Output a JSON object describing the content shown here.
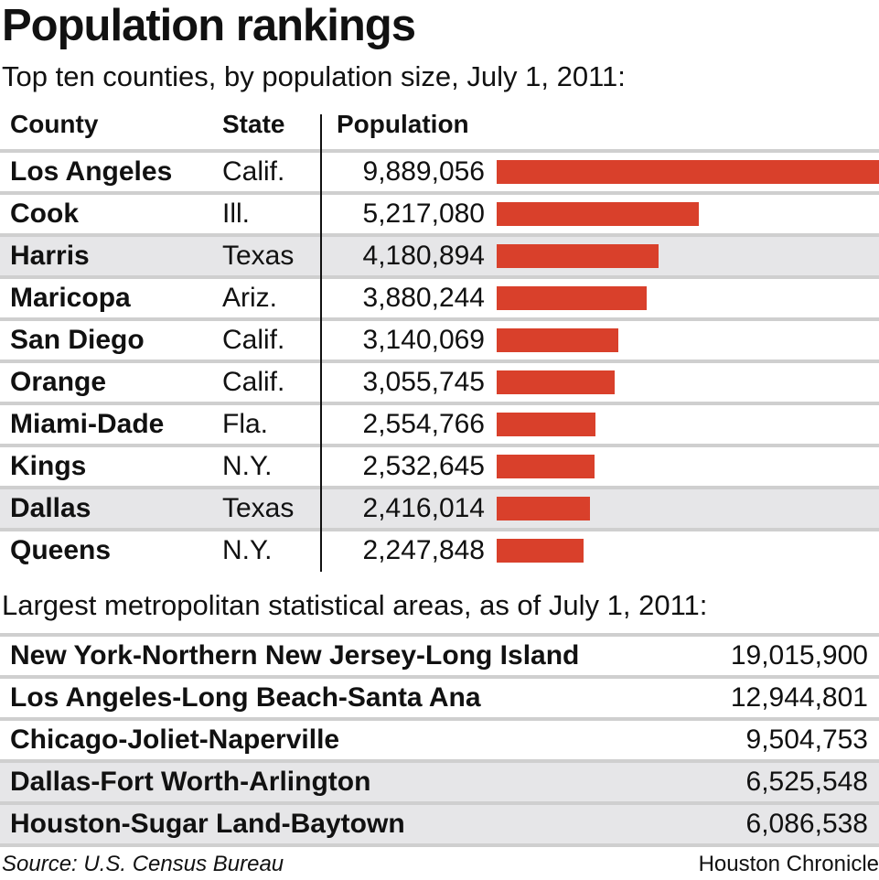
{
  "title": "Population rankings",
  "subtitle": "Top ten counties, by population size, July 1, 2011:",
  "headers": {
    "county": "County",
    "state": "State",
    "population": "Population"
  },
  "chart_data": {
    "type": "bar",
    "title": "Population rankings",
    "subtitle": "Top ten counties, by population size, July 1, 2011:",
    "bar_color": "#d9402b",
    "rows": [
      {
        "county": "Los Angeles",
        "state": "Calif.",
        "population": 9889056,
        "label": "9,889,056"
      },
      {
        "county": "Cook",
        "state": "Ill.",
        "population": 5217080,
        "label": "5,217,080"
      },
      {
        "county": "Harris",
        "state": "Texas",
        "population": 4180894,
        "label": "4,180,894"
      },
      {
        "county": "Maricopa",
        "state": "Ariz.",
        "population": 3880244,
        "label": "3,880,244"
      },
      {
        "county": "San Diego",
        "state": "Calif.",
        "population": 3140069,
        "label": "3,140,069"
      },
      {
        "county": "Orange",
        "state": "Calif.",
        "population": 3055745,
        "label": "3,055,745"
      },
      {
        "county": "Miami-Dade",
        "state": "Fla.",
        "population": 2554766,
        "label": "2,554,766"
      },
      {
        "county": "Kings",
        "state": "N.Y.",
        "population": 2532645,
        "label": "2,532,645"
      },
      {
        "county": "Dallas",
        "state": "Texas",
        "population": 2416014,
        "label": "2,416,014"
      },
      {
        "county": "Queens",
        "state": "N.Y.",
        "population": 2247848,
        "label": "2,247,848"
      }
    ]
  },
  "metro": {
    "subtitle": "Largest metropolitan statistical areas, as of July 1, 2011:",
    "rows": [
      {
        "name": "New York-Northern New Jersey-Long Island",
        "value": "19,015,900"
      },
      {
        "name": "Los Angeles-Long Beach-Santa Ana",
        "value": "12,944,801"
      },
      {
        "name": "Chicago-Joliet-Naperville",
        "value": "9,504,753"
      },
      {
        "name": "Dallas-Fort Worth-Arlington",
        "value": "6,525,548"
      },
      {
        "name": "Houston-Sugar Land-Baytown",
        "value": "6,086,538"
      }
    ]
  },
  "footer": {
    "source": "Source: U.S. Census Bureau",
    "credit": "Houston Chronicle"
  }
}
